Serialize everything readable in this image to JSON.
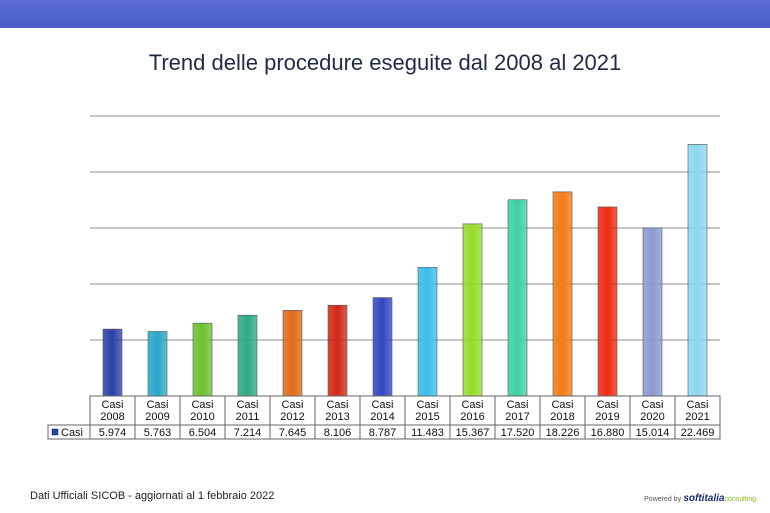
{
  "header": {
    "title": "Trend delle procedure eseguite dal 2008 al 2021"
  },
  "footer": {
    "source": "Dati Ufficiali SICOB - aggiornati al 1 febbraio 2022",
    "powered_by": "Powered by",
    "brand": "softitalia",
    "brand_suffix": "consulting"
  },
  "chart_data": {
    "type": "bar",
    "title": "Trend delle procedure eseguite dal 2008 al 2021",
    "categories": [
      "Casi 2008",
      "Casi 2009",
      "Casi 2010",
      "Casi 2011",
      "Casi 2012",
      "Casi 2013",
      "Casi 2014",
      "Casi 2015",
      "Casi 2016",
      "Casi 2017",
      "Casi 2018",
      "Casi 2019",
      "Casi 2020",
      "Casi 2021"
    ],
    "series": [
      {
        "name": "Casi",
        "values": [
          5974,
          5763,
          6504,
          7214,
          7645,
          8106,
          8787,
          11483,
          15367,
          17520,
          18226,
          16880,
          15014,
          22469
        ],
        "labels": [
          "5.974",
          "5.763",
          "6.504",
          "7.214",
          "7.645",
          "8.106",
          "8.787",
          "11.483",
          "15.367",
          "17.520",
          "18.226",
          "16.880",
          "15.014",
          "22.469"
        ]
      }
    ],
    "colors": [
      "#2d3fa8",
      "#2aa6c8",
      "#6cc030",
      "#2fa884",
      "#e06a1a",
      "#d02818",
      "#3446c0",
      "#38bdea",
      "#96dc2c",
      "#3fd0a4",
      "#f27a16",
      "#ee2a12",
      "#8c98d2",
      "#8ed6ee"
    ],
    "ylim": [
      0,
      25000
    ],
    "grid": true,
    "legend": "data-table",
    "data_table": true
  }
}
